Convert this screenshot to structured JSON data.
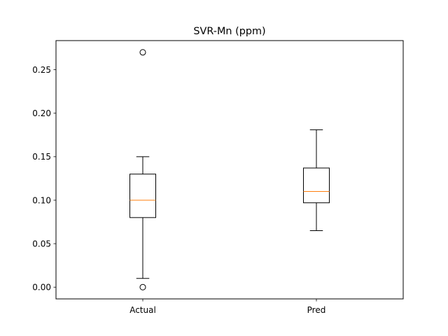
{
  "chart_data": {
    "type": "box",
    "title": "SVR-Mn (ppm)",
    "xlabel": "",
    "ylabel": "",
    "categories": [
      "Actual",
      "Pred"
    ],
    "ylim": [
      -0.0135,
      0.2835
    ],
    "yticks": [
      0.0,
      0.05,
      0.1,
      0.15,
      0.2,
      0.25
    ],
    "ytick_labels": [
      "0.00",
      "0.05",
      "0.10",
      "0.15",
      "0.20",
      "0.25"
    ],
    "grid": false,
    "boxes": [
      {
        "category": "Actual",
        "whisker_low": 0.01,
        "q1": 0.08,
        "median": 0.1,
        "q3": 0.13,
        "whisker_high": 0.15,
        "outliers": [
          0.0,
          0.27
        ]
      },
      {
        "category": "Pred",
        "whisker_low": 0.065,
        "q1": 0.097,
        "median": 0.11,
        "q3": 0.137,
        "whisker_high": 0.181,
        "outliers": []
      }
    ],
    "colors": {
      "box": "#000000",
      "median": "#ff7f0e",
      "background": "#ffffff"
    }
  }
}
